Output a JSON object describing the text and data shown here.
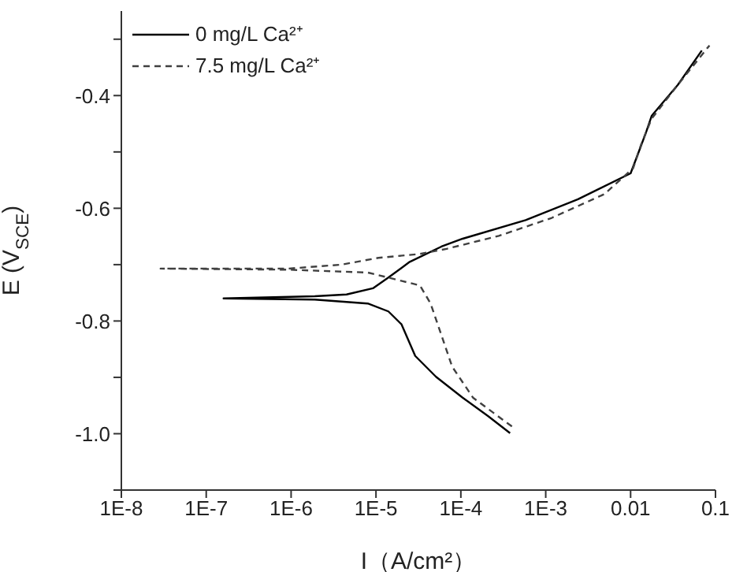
{
  "chart_data": {
    "type": "line",
    "xlabel": "I（A/cm²）",
    "ylabel": "E (V$_{SCE}$)",
    "log": "x",
    "xlim": [
      1e-08,
      0.1
    ],
    "xticks": [
      {
        "value": 1e-08,
        "label": "1E-8"
      },
      {
        "value": 1e-07,
        "label": "1E-7"
      },
      {
        "value": 1e-06,
        "label": "1E-6"
      },
      {
        "value": 1e-05,
        "label": "1E-5"
      },
      {
        "value": 0.0001,
        "label": "1E-4"
      },
      {
        "value": 0.001,
        "label": "1E-3"
      },
      {
        "value": 0.01,
        "label": "0.01"
      },
      {
        "value": 0.1,
        "label": "0.1"
      }
    ],
    "ylim": [
      -1.1,
      -0.25
    ],
    "yticks": [
      {
        "value": -1.1,
        "label": null
      },
      {
        "value": -1.0,
        "label": "-1.0"
      },
      {
        "value": -0.9,
        "label": null
      },
      -0.8,
      {
        "value": -0.7,
        "label": null
      },
      -0.6,
      {
        "value": -0.5,
        "label": null
      },
      -0.4,
      {
        "value": -0.3,
        "label": null
      }
    ],
    "legend": "top left",
    "marker": "none",
    "series": [
      {
        "name": "0 mg/L Ca²⁺",
        "color": "#000000",
        "line_style": "solid",
        "x": [
          0.00038,
          0.00021,
          0.000105,
          5.1e-05,
          2.9e-05,
          2e-05,
          1.4e-05,
          8e-06,
          1.9e-06,
          1.6e-07,
          1.9e-06,
          4.5e-06,
          9.2e-06,
          1.4e-05,
          2.5e-05,
          5.9e-05,
          0.000105,
          0.00058,
          0.0024,
          0.01,
          0.0124,
          0.0153,
          0.0177,
          0.036,
          0.069
        ],
        "values": [
          -0.999,
          -0.969,
          -0.936,
          -0.899,
          -0.862,
          -0.806,
          -0.783,
          -0.769,
          -0.762,
          -0.76,
          -0.756,
          -0.753,
          -0.742,
          -0.723,
          -0.695,
          -0.668,
          -0.654,
          -0.621,
          -0.584,
          -0.538,
          -0.501,
          -0.464,
          -0.436,
          -0.381,
          -0.32
        ]
      },
      {
        "name": "7.5 mg/L Ca²⁺",
        "color": "#404040",
        "line_style": "dashed",
        "x": [
          0.0004,
          0.00033,
          0.000139,
          7.9e-05,
          5.9e-05,
          4.4e-05,
          3.3e-05,
          1.9e-05,
          8e-06,
          9.4e-07,
          2.9e-08,
          9.4e-07,
          3.9e-06,
          1.07e-05,
          3.3e-05,
          6.8e-05,
          0.00028,
          0.00118,
          0.0049,
          0.0107,
          0.0133,
          0.0177,
          0.036,
          0.085
        ],
        "values": [
          -0.987,
          -0.978,
          -0.936,
          -0.881,
          -0.825,
          -0.769,
          -0.737,
          -0.728,
          -0.714,
          -0.709,
          -0.707,
          -0.707,
          -0.7,
          -0.688,
          -0.681,
          -0.672,
          -0.649,
          -0.617,
          -0.575,
          -0.529,
          -0.487,
          -0.441,
          -0.381,
          -0.311
        ]
      }
    ]
  }
}
